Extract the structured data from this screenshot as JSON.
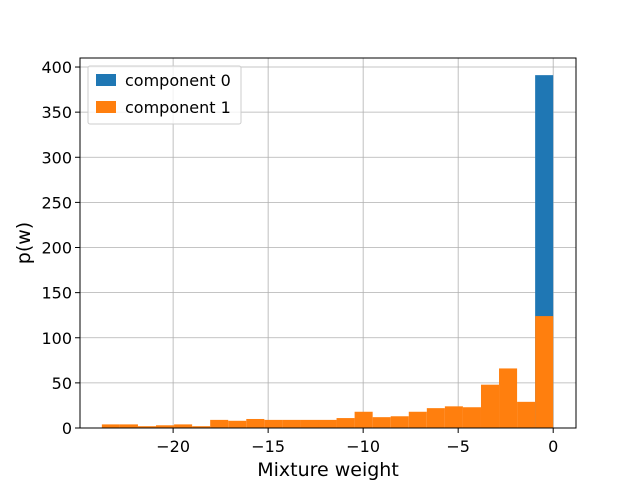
{
  "chart_data": {
    "type": "histogram",
    "xlabel": "Mixture weight",
    "ylabel": "p(w)",
    "xlim": [
      -24.9,
      1.2
    ],
    "ylim": [
      0,
      410
    ],
    "xticks": [
      -20,
      -15,
      -10,
      -5,
      0
    ],
    "xtick_labels": [
      "−20",
      "−15",
      "−10",
      "−5",
      "0"
    ],
    "yticks": [
      0,
      50,
      100,
      150,
      200,
      250,
      300,
      350,
      400
    ],
    "ytick_labels": [
      "0",
      "50",
      "100",
      "150",
      "200",
      "250",
      "300",
      "350",
      "400"
    ],
    "grid": true,
    "legend_position": "top-left",
    "series": [
      {
        "name": "component 0",
        "color": "#1f77b4",
        "bins": [
          {
            "x0": -0.95,
            "x1": 0.0,
            "value": 391
          }
        ]
      },
      {
        "name": "component 1",
        "color": "#ff7f0e",
        "bins": [
          {
            "x0": -23.75,
            "x1": -22.8,
            "value": 4
          },
          {
            "x0": -22.8,
            "x1": -21.85,
            "value": 4
          },
          {
            "x0": -21.85,
            "x1": -20.9,
            "value": 2
          },
          {
            "x0": -20.9,
            "x1": -19.95,
            "value": 3
          },
          {
            "x0": -19.95,
            "x1": -19.0,
            "value": 4
          },
          {
            "x0": -19.0,
            "x1": -18.05,
            "value": 2
          },
          {
            "x0": -18.05,
            "x1": -17.1,
            "value": 9
          },
          {
            "x0": -17.1,
            "x1": -16.15,
            "value": 8
          },
          {
            "x0": -16.15,
            "x1": -15.2,
            "value": 10
          },
          {
            "x0": -15.2,
            "x1": -14.25,
            "value": 9
          },
          {
            "x0": -14.25,
            "x1": -13.3,
            "value": 9
          },
          {
            "x0": -13.3,
            "x1": -12.35,
            "value": 9
          },
          {
            "x0": -12.35,
            "x1": -11.4,
            "value": 9
          },
          {
            "x0": -11.4,
            "x1": -10.45,
            "value": 11
          },
          {
            "x0": -10.45,
            "x1": -9.5,
            "value": 18
          },
          {
            "x0": -9.5,
            "x1": -8.55,
            "value": 12
          },
          {
            "x0": -8.55,
            "x1": -7.6,
            "value": 13
          },
          {
            "x0": -7.6,
            "x1": -6.65,
            "value": 18
          },
          {
            "x0": -6.65,
            "x1": -5.7,
            "value": 22
          },
          {
            "x0": -5.7,
            "x1": -4.75,
            "value": 24
          },
          {
            "x0": -4.75,
            "x1": -3.8,
            "value": 23
          },
          {
            "x0": -3.8,
            "x1": -2.85,
            "value": 48
          },
          {
            "x0": -2.85,
            "x1": -1.9,
            "value": 66
          },
          {
            "x0": -1.9,
            "x1": -0.95,
            "value": 29
          },
          {
            "x0": -0.95,
            "x1": 0.0,
            "value": 124
          }
        ]
      }
    ]
  }
}
